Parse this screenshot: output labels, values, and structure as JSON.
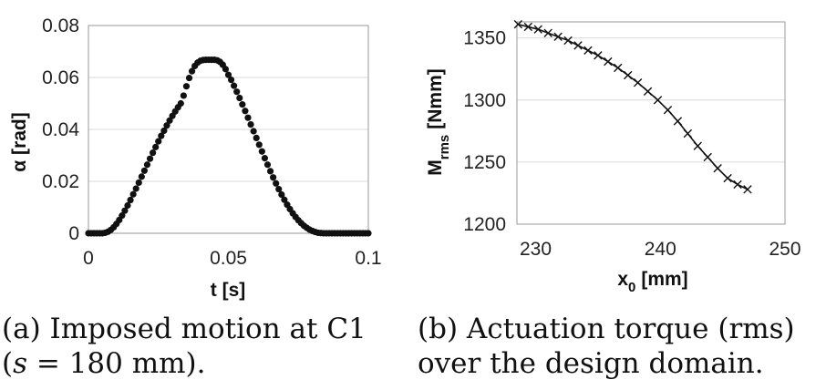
{
  "chart_data": [
    {
      "type": "scatter",
      "marker": "filled-circle",
      "xlabel": "t [s]",
      "ylabel": "α [rad]",
      "xlim": [
        0,
        0.1
      ],
      "ylim": [
        0,
        0.08
      ],
      "xticks": [
        "0",
        "0.05",
        "0.1"
      ],
      "yticks": [
        "0",
        "0.02",
        "0.04",
        "0.06",
        "0.08"
      ],
      "grid": "horizontal",
      "series": [
        {
          "x": [
            0.0,
            0.001,
            0.002,
            0.003,
            0.004,
            0.005,
            0.006,
            0.007,
            0.008,
            0.009,
            0.01,
            0.011,
            0.012,
            0.013,
            0.014,
            0.015,
            0.016,
            0.017,
            0.018,
            0.019,
            0.02,
            0.021,
            0.022,
            0.023,
            0.024,
            0.025,
            0.026,
            0.027,
            0.028,
            0.029,
            0.03,
            0.031,
            0.032,
            0.033,
            0.034,
            0.035,
            0.036,
            0.037,
            0.038,
            0.039,
            0.04,
            0.041,
            0.042,
            0.043,
            0.044,
            0.045,
            0.046,
            0.047,
            0.048,
            0.049,
            0.05,
            0.051,
            0.052,
            0.053,
            0.054,
            0.055,
            0.056,
            0.057,
            0.058,
            0.059,
            0.06,
            0.061,
            0.062,
            0.063,
            0.064,
            0.065,
            0.066,
            0.067,
            0.068,
            0.069,
            0.07,
            0.071,
            0.072,
            0.073,
            0.074,
            0.075,
            0.076,
            0.077,
            0.078,
            0.079,
            0.08,
            0.081,
            0.082,
            0.083,
            0.084,
            0.085,
            0.086,
            0.087,
            0.088,
            0.089,
            0.09,
            0.091,
            0.092,
            0.093,
            0.094,
            0.095,
            0.096,
            0.097,
            0.098,
            0.099,
            0.1
          ],
          "y": [
            0.0,
            0.0,
            0.0,
            0.0,
            0.0,
            0.0,
            0.0002,
            0.0006,
            0.0013,
            0.0023,
            0.0036,
            0.0051,
            0.0068,
            0.0087,
            0.0107,
            0.0128,
            0.015,
            0.0172,
            0.0195,
            0.0218,
            0.0241,
            0.0264,
            0.0287,
            0.031,
            0.0332,
            0.0354,
            0.0375,
            0.0395,
            0.0415,
            0.0434,
            0.0452,
            0.0469,
            0.0485,
            0.05,
            0.053,
            0.0566,
            0.0598,
            0.0624,
            0.0644,
            0.0657,
            0.0664,
            0.0667,
            0.0668,
            0.0668,
            0.0668,
            0.0668,
            0.0666,
            0.066,
            0.0649,
            0.0632,
            0.061,
            0.0591,
            0.0568,
            0.0545,
            0.0521,
            0.0496,
            0.0471,
            0.0445,
            0.0419,
            0.0393,
            0.0367,
            0.0341,
            0.0315,
            0.0289,
            0.0264,
            0.0239,
            0.0215,
            0.0192,
            0.017,
            0.0149,
            0.0129,
            0.011,
            0.0093,
            0.0077,
            0.0063,
            0.005,
            0.0039,
            0.0029,
            0.0021,
            0.0014,
            0.0009,
            0.0005,
            0.0002,
            0.0001,
            0.0,
            0.0,
            0.0,
            0.0,
            0.0,
            0.0,
            0.0,
            0.0,
            0.0,
            0.0,
            0.0,
            0.0,
            0.0,
            0.0,
            0.0,
            0.0,
            0.0
          ]
        }
      ]
    },
    {
      "type": "line",
      "marker": "x",
      "xlabel": "x0 [mm]",
      "ylabel": "Mrms [Nmm]",
      "xlim": [
        228.5,
        250
      ],
      "ylim": [
        1200,
        1363
      ],
      "xticks": [
        "230",
        "240",
        "250"
      ],
      "yticks": [
        "1200",
        "1250",
        "1300",
        "1350"
      ],
      "grid": "horizontal",
      "series": [
        {
          "x": [
            228.6,
            229.4,
            230.2,
            231.0,
            231.8,
            232.6,
            233.4,
            234.2,
            235.0,
            235.8,
            236.6,
            237.4,
            238.2,
            239.0,
            239.8,
            240.6,
            241.4,
            242.2,
            243.0,
            243.8,
            244.6,
            245.4,
            246.2,
            247.0
          ],
          "y": [
            1361,
            1359,
            1357,
            1354,
            1351,
            1348,
            1344,
            1340,
            1336,
            1331,
            1326,
            1320,
            1314,
            1307,
            1300,
            1292,
            1283,
            1273,
            1263,
            1254,
            1245,
            1237,
            1232,
            1228
          ]
        }
      ]
    }
  ],
  "left_axis": {
    "ylabel": "α [rad]",
    "xlabel": "t [s]"
  },
  "right_axis": {
    "ylabel_main": "M",
    "ylabel_sub": "rms",
    "ylabel_unit": "[Nmm]",
    "xlabel_main": "x",
    "xlabel_sub": "0",
    "xlabel_unit": "[mm]"
  },
  "captions": {
    "a_line1": "(a) Imposed motion at C1",
    "a_line2_open": "(",
    "a_line2_var": "s",
    "a_line2_rest": " = 180 mm).",
    "b_line1": "(b) Actuation torque (rms)",
    "b_line2": "over the design domain."
  }
}
